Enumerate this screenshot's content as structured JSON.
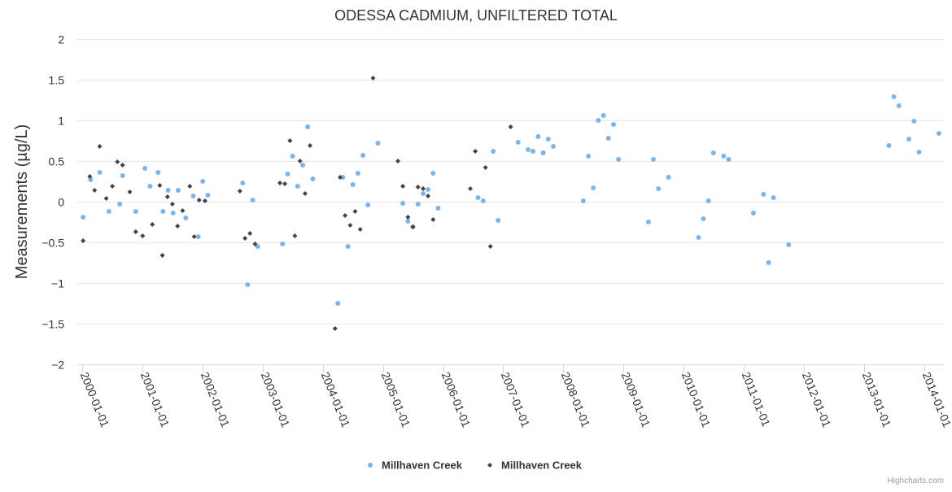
{
  "chart_data": {
    "type": "scatter",
    "title": "ODESSA CADMIUM, UNFILTERED TOTAL",
    "xlabel": "",
    "ylabel": "Measurements (µg/L)",
    "ylim": [
      -2,
      2
    ],
    "yticks": [
      -2,
      -1.5,
      -1,
      -0.5,
      0,
      0.5,
      1,
      1.5,
      2
    ],
    "ytick_labels": [
      "−2",
      "−1.5",
      "−1",
      "−0.5",
      "0",
      "0.5",
      "1",
      "1.5",
      "2"
    ],
    "xlim": [
      "1999-12-01",
      "2014-05-01"
    ],
    "xticks": [
      "2000-01-01",
      "2001-01-01",
      "2002-01-01",
      "2003-01-01",
      "2004-01-01",
      "2005-01-01",
      "2006-01-01",
      "2007-01-01",
      "2008-01-01",
      "2009-01-01",
      "2010-01-01",
      "2011-01-01",
      "2012-01-01",
      "2013-01-01",
      "2014-01-01"
    ],
    "grid": true,
    "legend_position": "bottom-center",
    "series": [
      {
        "name": "Millhaven Creek",
        "color": "#7cb5ec",
        "marker": "circle",
        "points": [
          [
            "2000-01-05",
            -0.19
          ],
          [
            "2000-02-20",
            0.27
          ],
          [
            "2000-04-15",
            0.36
          ],
          [
            "2000-06-10",
            -0.12
          ],
          [
            "2000-08-15",
            -0.03
          ],
          [
            "2000-09-01",
            0.32
          ],
          [
            "2000-11-20",
            -0.12
          ],
          [
            "2001-01-15",
            0.41
          ],
          [
            "2001-02-15",
            0.19
          ],
          [
            "2001-04-05",
            0.36
          ],
          [
            "2001-05-05",
            -0.12
          ],
          [
            "2001-06-05",
            0.14
          ],
          [
            "2001-07-05",
            -0.14
          ],
          [
            "2001-08-05",
            0.14
          ],
          [
            "2001-09-20",
            -0.2
          ],
          [
            "2001-11-05",
            0.07
          ],
          [
            "2001-12-05",
            -0.43
          ],
          [
            "2002-01-01",
            0.25
          ],
          [
            "2002-02-01",
            0.08
          ],
          [
            "2002-09-01",
            0.23
          ],
          [
            "2002-10-01",
            -1.02
          ],
          [
            "2002-11-01",
            0.02
          ],
          [
            "2002-12-01",
            -0.55
          ],
          [
            "2003-05-01",
            -0.52
          ],
          [
            "2003-06-01",
            0.34
          ],
          [
            "2003-07-01",
            0.56
          ],
          [
            "2003-08-01",
            0.19
          ],
          [
            "2003-09-01",
            0.45
          ],
          [
            "2003-10-01",
            0.92
          ],
          [
            "2003-11-01",
            0.28
          ],
          [
            "2004-04-01",
            -1.25
          ],
          [
            "2004-05-01",
            0.3
          ],
          [
            "2004-06-01",
            -0.55
          ],
          [
            "2004-07-01",
            0.21
          ],
          [
            "2004-08-01",
            0.35
          ],
          [
            "2004-09-01",
            0.57
          ],
          [
            "2004-10-01",
            -0.04
          ],
          [
            "2004-12-01",
            0.72
          ],
          [
            "2005-05-01",
            -0.02
          ],
          [
            "2005-06-01",
            -0.24
          ],
          [
            "2005-07-01",
            -0.31
          ],
          [
            "2005-08-01",
            -0.03
          ],
          [
            "2005-09-01",
            0.1
          ],
          [
            "2005-10-01",
            0.15
          ],
          [
            "2005-11-01",
            0.35
          ],
          [
            "2005-12-01",
            -0.08
          ],
          [
            "2006-08-01",
            0.05
          ],
          [
            "2006-09-01",
            0.01
          ],
          [
            "2006-11-01",
            0.62
          ],
          [
            "2006-12-01",
            -0.23
          ],
          [
            "2007-04-01",
            0.73
          ],
          [
            "2007-06-01",
            0.64
          ],
          [
            "2007-07-01",
            0.62
          ],
          [
            "2007-08-01",
            0.8
          ],
          [
            "2007-09-01",
            0.6
          ],
          [
            "2007-10-01",
            0.77
          ],
          [
            "2007-11-01",
            0.68
          ],
          [
            "2008-05-01",
            0.01
          ],
          [
            "2008-06-01",
            0.56
          ],
          [
            "2008-07-01",
            0.17
          ],
          [
            "2008-08-01",
            1.0
          ],
          [
            "2008-09-01",
            1.06
          ],
          [
            "2008-10-01",
            0.78
          ],
          [
            "2008-11-01",
            0.95
          ],
          [
            "2008-12-01",
            0.52
          ],
          [
            "2009-06-01",
            -0.25
          ],
          [
            "2009-07-01",
            0.52
          ],
          [
            "2009-08-01",
            0.16
          ],
          [
            "2009-10-01",
            0.3
          ],
          [
            "2010-04-01",
            -0.44
          ],
          [
            "2010-05-01",
            -0.21
          ],
          [
            "2010-06-01",
            0.01
          ],
          [
            "2010-07-01",
            0.6
          ],
          [
            "2010-09-01",
            0.56
          ],
          [
            "2010-10-01",
            0.52
          ],
          [
            "2011-03-01",
            -0.14
          ],
          [
            "2011-05-01",
            0.09
          ],
          [
            "2011-06-01",
            -0.75
          ],
          [
            "2011-07-01",
            0.05
          ],
          [
            "2011-10-01",
            -0.53
          ],
          [
            "2013-06-01",
            0.69
          ],
          [
            "2013-07-01",
            1.29
          ],
          [
            "2013-08-01",
            1.18
          ],
          [
            "2013-10-01",
            0.77
          ],
          [
            "2013-11-01",
            0.99
          ],
          [
            "2013-12-01",
            0.61
          ],
          [
            "2014-04-01",
            0.84
          ]
        ]
      },
      {
        "name": "Millhaven Creek",
        "color": "#434348",
        "marker": "diamond",
        "points": [
          [
            "2000-01-05",
            -0.48
          ],
          [
            "2000-02-15",
            0.31
          ],
          [
            "2000-03-15",
            0.14
          ],
          [
            "2000-04-15",
            0.68
          ],
          [
            "2000-05-25",
            0.04
          ],
          [
            "2000-07-01",
            0.19
          ],
          [
            "2000-08-01",
            0.49
          ],
          [
            "2000-09-01",
            0.45
          ],
          [
            "2000-10-15",
            0.12
          ],
          [
            "2000-11-20",
            -0.37
          ],
          [
            "2001-01-01",
            -0.42
          ],
          [
            "2001-03-01",
            -0.28
          ],
          [
            "2001-04-15",
            0.2
          ],
          [
            "2001-05-01",
            -0.66
          ],
          [
            "2001-06-01",
            0.06
          ],
          [
            "2001-07-01",
            -0.03
          ],
          [
            "2001-08-01",
            -0.3
          ],
          [
            "2001-09-01",
            -0.11
          ],
          [
            "2001-10-15",
            0.19
          ],
          [
            "2001-11-10",
            -0.43
          ],
          [
            "2001-12-10",
            0.02
          ],
          [
            "2002-01-15",
            0.01
          ],
          [
            "2002-08-15",
            0.13
          ],
          [
            "2002-09-15",
            -0.45
          ],
          [
            "2002-10-15",
            -0.39
          ],
          [
            "2002-11-15",
            -0.52
          ],
          [
            "2003-04-15",
            0.23
          ],
          [
            "2003-05-15",
            0.22
          ],
          [
            "2003-06-15",
            0.75
          ],
          [
            "2003-07-15",
            -0.42
          ],
          [
            "2003-08-15",
            0.5
          ],
          [
            "2003-09-15",
            0.1
          ],
          [
            "2003-10-15",
            0.69
          ],
          [
            "2004-03-15",
            -1.56
          ],
          [
            "2004-04-15",
            0.3
          ],
          [
            "2004-05-15",
            -0.17
          ],
          [
            "2004-06-15",
            -0.29
          ],
          [
            "2004-07-15",
            -0.12
          ],
          [
            "2004-08-15",
            -0.34
          ],
          [
            "2004-11-01",
            1.52
          ],
          [
            "2005-04-01",
            0.5
          ],
          [
            "2005-05-01",
            0.19
          ],
          [
            "2005-06-01",
            -0.19
          ],
          [
            "2005-07-01",
            -0.31
          ],
          [
            "2005-08-01",
            0.18
          ],
          [
            "2005-09-01",
            0.16
          ],
          [
            "2005-10-01",
            0.07
          ],
          [
            "2005-11-01",
            -0.22
          ],
          [
            "2006-06-15",
            0.16
          ],
          [
            "2006-07-15",
            0.62
          ],
          [
            "2006-09-15",
            0.42
          ],
          [
            "2006-10-15",
            -0.55
          ],
          [
            "2007-02-15",
            0.92
          ]
        ]
      }
    ]
  },
  "credits": "Highcharts.com"
}
